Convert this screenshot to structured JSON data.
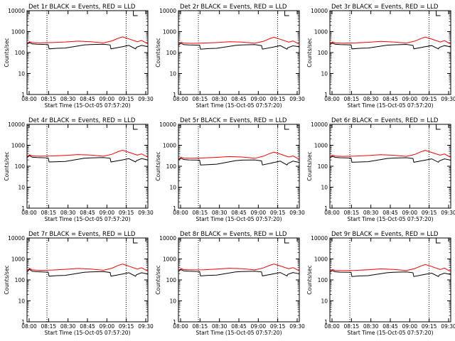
{
  "chart_data": [
    {
      "type": "line",
      "title": "Det 1r BLACK = Events, RED = LLD",
      "xlabel": "Start Time (15-Oct-05 07:57:20)",
      "ylabel": "Counts/sec",
      "yscale": "log",
      "ylim": [
        1,
        10000
      ],
      "xlim": [
        0,
        2850
      ],
      "xtick_labels": [
        "08:00",
        "08:15",
        "08:30",
        "08:45",
        "09:00",
        "09:15",
        "09:30"
      ],
      "ytick_labels": [
        "1",
        "10",
        "100",
        "1000",
        "10000"
      ],
      "series": [
        {
          "color": "#000000",
          "x": [
            0,
            60,
            120,
            240,
            500,
            520,
            700,
            900,
            1350,
            1500,
            1800,
            1960,
            1980,
            2250,
            2400,
            2560,
            2580,
            2700,
            2800,
            2850
          ],
          "y": [
            250,
            300,
            260,
            250,
            240,
            150,
            160,
            165,
            230,
            240,
            250,
            230,
            150,
            190,
            220,
            150,
            180,
            220,
            200,
            190
          ]
        },
        {
          "color": "#ff0000",
          "x": [
            0,
            60,
            120,
            300,
            600,
            900,
            1200,
            1500,
            1800,
            2000,
            2150,
            2250,
            2400,
            2600,
            2700,
            2850
          ],
          "y": [
            280,
            330,
            300,
            290,
            300,
            320,
            350,
            330,
            290,
            360,
            480,
            560,
            450,
            330,
            380,
            260
          ]
        }
      ]
    },
    {
      "type": "line",
      "title": "Det 2r BLACK = Events, RED = LLD",
      "xlabel": "Start Time (15-Oct-05 07:57:20)",
      "ylabel": "Counts/sec",
      "yscale": "log",
      "ylim": [
        1,
        10000
      ],
      "xlim": [
        0,
        2850
      ],
      "xtick_labels": [
        "08:00",
        "08:15",
        "08:30",
        "08:45",
        "09:00",
        "09:15",
        "09:30"
      ],
      "ytick_labels": [
        "1",
        "10",
        "100",
        "1000",
        "10000"
      ],
      "series": [
        {
          "color": "#000000",
          "x": [
            0,
            60,
            120,
            240,
            500,
            520,
            700,
            900,
            1350,
            1500,
            1800,
            1960,
            1980,
            2250,
            2400,
            2560,
            2580,
            2700,
            2800,
            2850
          ],
          "y": [
            230,
            280,
            240,
            230,
            225,
            145,
            155,
            160,
            220,
            230,
            240,
            215,
            145,
            185,
            215,
            145,
            170,
            210,
            195,
            185
          ]
        },
        {
          "color": "#ff0000",
          "x": [
            0,
            60,
            120,
            300,
            600,
            900,
            1200,
            1500,
            1800,
            2000,
            2150,
            2250,
            2400,
            2600,
            2700,
            2850
          ],
          "y": [
            260,
            310,
            285,
            275,
            285,
            300,
            330,
            315,
            280,
            340,
            460,
            540,
            430,
            315,
            360,
            250
          ]
        }
      ]
    },
    {
      "type": "line",
      "title": "Det 3r BLACK = Events, RED = LLD",
      "xlabel": "Start Time (15-Oct-05 07:57:20)",
      "ylabel": "Counts/sec",
      "yscale": "log",
      "ylim": [
        1,
        10000
      ],
      "xlim": [
        0,
        2850
      ],
      "xtick_labels": [
        "08:00",
        "08:15",
        "08:30",
        "08:45",
        "09:00",
        "09:15",
        "09:30"
      ],
      "ytick_labels": [
        "1",
        "10",
        "100",
        "1000",
        "10000"
      ],
      "series": [
        {
          "color": "#000000",
          "x": [
            0,
            60,
            120,
            240,
            500,
            520,
            700,
            900,
            1350,
            1500,
            1800,
            1960,
            1980,
            2250,
            2400,
            2560,
            2580,
            2700,
            2800,
            2850
          ],
          "y": [
            240,
            290,
            250,
            240,
            235,
            150,
            160,
            165,
            225,
            235,
            245,
            220,
            150,
            190,
            215,
            150,
            175,
            215,
            195,
            185
          ]
        },
        {
          "color": "#ff0000",
          "x": [
            0,
            60,
            120,
            300,
            600,
            900,
            1200,
            1500,
            1800,
            2000,
            2150,
            2250,
            2400,
            2600,
            2700,
            2850
          ],
          "y": [
            270,
            320,
            290,
            280,
            290,
            310,
            340,
            320,
            285,
            350,
            470,
            550,
            440,
            320,
            370,
            255
          ]
        }
      ]
    },
    {
      "type": "line",
      "title": "Det 4r BLACK = Events, RED = LLD",
      "xlabel": "Start Time (15-Oct-05 07:57:20)",
      "ylabel": "Counts/sec",
      "yscale": "log",
      "ylim": [
        1,
        10000
      ],
      "xlim": [
        0,
        2850
      ],
      "xtick_labels": [
        "08:00",
        "08:15",
        "08:30",
        "08:45",
        "09:00",
        "09:15",
        "09:30"
      ],
      "ytick_labels": [
        "1",
        "10",
        "100",
        "1000",
        "10000"
      ],
      "series": [
        {
          "color": "#000000",
          "x": [
            0,
            60,
            120,
            240,
            500,
            520,
            700,
            900,
            1350,
            1500,
            1800,
            1960,
            1980,
            2250,
            2400,
            2560,
            2580,
            2700,
            2800,
            2850
          ],
          "y": [
            260,
            320,
            270,
            260,
            250,
            160,
            165,
            170,
            240,
            250,
            260,
            240,
            160,
            200,
            230,
            160,
            185,
            230,
            210,
            195
          ]
        },
        {
          "color": "#ff0000",
          "x": [
            0,
            60,
            120,
            300,
            600,
            900,
            1200,
            1500,
            1800,
            2000,
            2150,
            2250,
            2400,
            2600,
            2700,
            2850
          ],
          "y": [
            290,
            350,
            310,
            300,
            310,
            330,
            360,
            340,
            300,
            370,
            500,
            580,
            460,
            340,
            390,
            270
          ]
        }
      ]
    },
    {
      "type": "line",
      "title": "Det 5r BLACK = Events, RED = LLD",
      "xlabel": "Start Time (15-Oct-05 07:57:20)",
      "ylabel": "Counts/sec",
      "yscale": "log",
      "ylim": [
        1,
        10000
      ],
      "xlim": [
        0,
        2850
      ],
      "xtick_labels": [
        "08:00",
        "08:15",
        "08:30",
        "08:45",
        "09:00",
        "09:15",
        "09:30"
      ],
      "ytick_labels": [
        "1",
        "10",
        "100",
        "1000",
        "10000"
      ],
      "series": [
        {
          "color": "#000000",
          "x": [
            0,
            60,
            120,
            240,
            500,
            520,
            700,
            900,
            1350,
            1500,
            1800,
            1960,
            1980,
            2250,
            2400,
            2560,
            2580,
            2700,
            2800,
            2850
          ],
          "y": [
            200,
            240,
            210,
            200,
            195,
            115,
            120,
            125,
            185,
            195,
            200,
            180,
            115,
            150,
            175,
            115,
            135,
            175,
            160,
            150
          ]
        },
        {
          "color": "#ff0000",
          "x": [
            0,
            60,
            120,
            300,
            600,
            900,
            1200,
            1500,
            1800,
            2000,
            2150,
            2250,
            2400,
            2600,
            2700,
            2850
          ],
          "y": [
            220,
            270,
            245,
            240,
            250,
            265,
            290,
            275,
            240,
            300,
            400,
            470,
            380,
            275,
            310,
            215
          ]
        }
      ]
    },
    {
      "type": "line",
      "title": "Det 6r BLACK = Events, RED = LLD",
      "xlabel": "Start Time (15-Oct-05 07:57:20)",
      "ylabel": "Counts/sec",
      "yscale": "log",
      "ylim": [
        1,
        10000
      ],
      "xlim": [
        0,
        2850
      ],
      "xtick_labels": [
        "08:00",
        "08:15",
        "08:30",
        "08:45",
        "09:00",
        "09:15",
        "09:30"
      ],
      "ytick_labels": [
        "1",
        "10",
        "100",
        "1000",
        "10000"
      ],
      "series": [
        {
          "color": "#000000",
          "x": [
            0,
            60,
            120,
            240,
            500,
            520,
            700,
            900,
            1350,
            1500,
            1800,
            1960,
            1980,
            2250,
            2400,
            2560,
            2580,
            2700,
            2800,
            2850
          ],
          "y": [
            250,
            300,
            265,
            255,
            245,
            155,
            160,
            165,
            235,
            245,
            255,
            235,
            155,
            195,
            225,
            155,
            180,
            225,
            205,
            190
          ]
        },
        {
          "color": "#ff0000",
          "x": [
            0,
            60,
            120,
            300,
            600,
            900,
            1200,
            1500,
            1800,
            2000,
            2150,
            2250,
            2400,
            2600,
            2700,
            2850
          ],
          "y": [
            285,
            340,
            305,
            295,
            305,
            325,
            355,
            335,
            295,
            365,
            490,
            570,
            455,
            335,
            385,
            265
          ]
        }
      ]
    },
    {
      "type": "line",
      "title": "Det 7r BLACK = Events, RED = LLD",
      "xlabel": "Start Time (15-Oct-05 07:57:20)",
      "ylabel": "Counts/sec",
      "yscale": "log",
      "ylim": [
        1,
        10000
      ],
      "xlim": [
        0,
        2850
      ],
      "xtick_labels": [
        "08:00",
        "08:15",
        "08:30",
        "08:45",
        "09:00",
        "09:15",
        "09:30"
      ],
      "ytick_labels": [
        "1",
        "10",
        "100",
        "1000",
        "10000"
      ],
      "series": [
        {
          "color": "#000000",
          "x": [
            0,
            60,
            120,
            240,
            500,
            520,
            700,
            900,
            1350,
            1500,
            1800,
            1960,
            1980,
            2250,
            2400,
            2560,
            2580,
            2700,
            2800,
            2850
          ],
          "y": [
            240,
            320,
            260,
            245,
            235,
            150,
            160,
            165,
            230,
            240,
            250,
            225,
            150,
            190,
            220,
            150,
            175,
            220,
            200,
            185
          ]
        },
        {
          "color": "#ff0000",
          "x": [
            0,
            60,
            120,
            300,
            600,
            900,
            1200,
            1500,
            1800,
            2000,
            2150,
            2250,
            2400,
            2600,
            2700,
            2850
          ],
          "y": [
            275,
            360,
            300,
            285,
            295,
            320,
            350,
            330,
            290,
            360,
            490,
            570,
            450,
            330,
            380,
            260
          ]
        }
      ]
    },
    {
      "type": "line",
      "title": "Det 8r BLACK = Events, RED = LLD",
      "xlabel": "Start Time (15-Oct-05 07:57:20)",
      "ylabel": "Counts/sec",
      "yscale": "log",
      "ylim": [
        1,
        10000
      ],
      "xlim": [
        0,
        2850
      ],
      "xtick_labels": [
        "08:00",
        "08:15",
        "08:30",
        "08:45",
        "09:00",
        "09:15",
        "09:30"
      ],
      "ytick_labels": [
        "1",
        "10",
        "100",
        "1000",
        "10000"
      ],
      "series": [
        {
          "color": "#000000",
          "x": [
            0,
            60,
            120,
            240,
            500,
            520,
            700,
            900,
            1350,
            1500,
            1800,
            1960,
            1980,
            2250,
            2400,
            2560,
            2580,
            2700,
            2800,
            2850
          ],
          "y": [
            255,
            310,
            270,
            260,
            250,
            155,
            165,
            170,
            240,
            250,
            260,
            240,
            155,
            195,
            225,
            155,
            185,
            225,
            205,
            190
          ]
        },
        {
          "color": "#ff0000",
          "x": [
            0,
            60,
            120,
            300,
            600,
            900,
            1200,
            1500,
            1800,
            2000,
            2150,
            2250,
            2400,
            2600,
            2700,
            2850
          ],
          "y": [
            285,
            345,
            310,
            300,
            305,
            330,
            360,
            340,
            300,
            370,
            495,
            575,
            460,
            340,
            390,
            270
          ]
        }
      ]
    },
    {
      "type": "line",
      "title": "Det 9r BLACK = Events, RED = LLD",
      "xlabel": "Start Time (15-Oct-05 07:57:20)",
      "ylabel": "Counts/sec",
      "yscale": "log",
      "ylim": [
        1,
        10000
      ],
      "xlim": [
        0,
        2850
      ],
      "xtick_labels": [
        "08:00",
        "08:15",
        "08:30",
        "08:45",
        "09:00",
        "09:15",
        "09:30"
      ],
      "ytick_labels": [
        "1",
        "10",
        "100",
        "1000",
        "10000"
      ],
      "series": [
        {
          "color": "#000000",
          "x": [
            0,
            60,
            120,
            240,
            500,
            520,
            700,
            900,
            1350,
            1500,
            1800,
            1960,
            1980,
            2250,
            2400,
            2560,
            2580,
            2700,
            2800,
            2850
          ],
          "y": [
            235,
            280,
            245,
            235,
            230,
            145,
            155,
            160,
            220,
            230,
            240,
            220,
            145,
            185,
            210,
            145,
            170,
            210,
            190,
            180
          ]
        },
        {
          "color": "#ff0000",
          "x": [
            0,
            60,
            120,
            300,
            600,
            900,
            1200,
            1500,
            1800,
            2000,
            2150,
            2250,
            2400,
            2600,
            2700,
            2850
          ],
          "y": [
            265,
            315,
            285,
            275,
            285,
            305,
            335,
            315,
            280,
            345,
            465,
            545,
            435,
            315,
            365,
            250
          ]
        }
      ]
    }
  ]
}
